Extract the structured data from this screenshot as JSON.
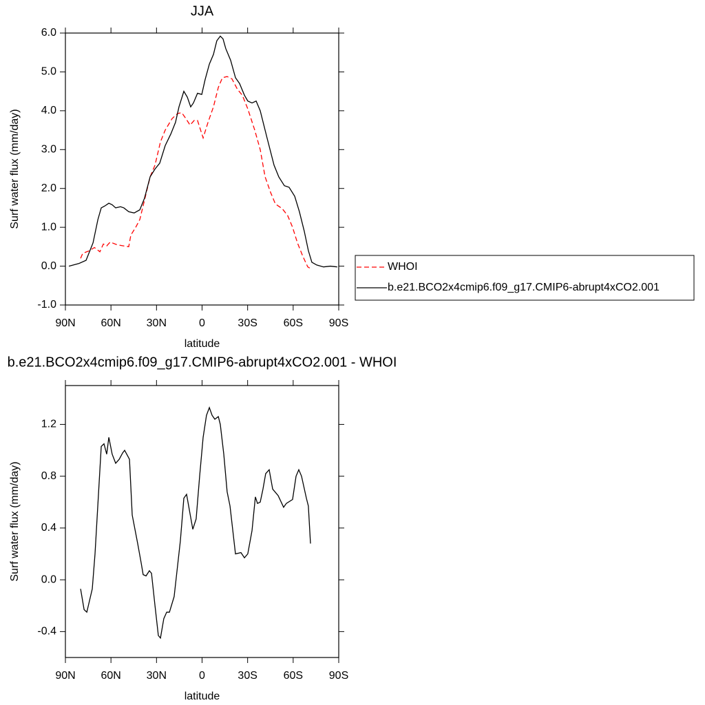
{
  "chart_data": [
    {
      "type": "line",
      "title": "JJA",
      "xlabel": "latitude",
      "ylabel": "Surf water flux (mm/day)",
      "xlim": [
        90,
        -90
      ],
      "xticks": [
        {
          "value": 90,
          "label": "90N"
        },
        {
          "value": 60,
          "label": "60N"
        },
        {
          "value": 30,
          "label": "30N"
        },
        0,
        {
          "value": -30,
          "label": "30S"
        },
        {
          "value": -60,
          "label": "60S"
        },
        {
          "value": -90,
          "label": "90S"
        }
      ],
      "ylim": [
        -1,
        6
      ],
      "yticks": [
        {
          "value": -1,
          "label": "-1.0"
        },
        {
          "value": 0,
          "label": "0.0"
        },
        {
          "value": 1,
          "label": "1.0"
        },
        {
          "value": 2,
          "label": "2.0"
        },
        {
          "value": 3,
          "label": "3.0"
        },
        {
          "value": 4,
          "label": "4.0"
        },
        {
          "value": 5,
          "label": "5.0"
        },
        {
          "value": 6,
          "label": "6.0"
        }
      ],
      "legend": "right",
      "series": [
        {
          "name": "WHOI",
          "color": "#ff0000",
          "style": "dashed",
          "x": [
            80,
            78.6,
            74,
            70.9,
            67.3,
            65,
            62.8,
            60.5,
            56,
            51.5,
            48.3,
            46.9,
            43.7,
            41,
            37.9,
            34.2,
            31,
            27.4,
            24.3,
            19.7,
            16.1,
            13.4,
            10.7,
            7.9,
            5.2,
            3,
            -0.7,
            -3.9,
            -7.5,
            -10.7,
            -13.4,
            -16.5,
            -19.7,
            -23.3,
            -26.5,
            -30.1,
            -34.7,
            -38.3,
            -41.5,
            -45.1,
            -48.3,
            -52.8,
            -56.4,
            -59.6,
            -62.8,
            -66.4,
            -69.6,
            -71.8
          ],
          "values": [
            0.2,
            0.33,
            0.4,
            0.48,
            0.37,
            0.57,
            0.52,
            0.62,
            0.55,
            0.52,
            0.5,
            0.8,
            1.0,
            1.2,
            1.7,
            2.3,
            2.6,
            3.2,
            3.5,
            3.8,
            3.93,
            3.95,
            3.8,
            3.63,
            3.75,
            3.75,
            3.3,
            3.7,
            4.1,
            4.6,
            4.85,
            4.88,
            4.82,
            4.55,
            4.4,
            4.05,
            3.5,
            3.0,
            2.3,
            1.9,
            1.6,
            1.48,
            1.3,
            1.0,
            0.6,
            0.25,
            -0.02,
            -0.07
          ]
        },
        {
          "name": "b.e21.BCO2x4cmip6.f09_g17.CMIP6-abrupt4xCO2.001",
          "color": "#000000",
          "style": "solid",
          "x": [
            87.7,
            81,
            76.4,
            71.8,
            68.6,
            66.4,
            64,
            61.4,
            59.2,
            56.9,
            53.7,
            51.5,
            48.3,
            44.7,
            41,
            37.9,
            34.2,
            31,
            27.9,
            24.3,
            20.6,
            17.5,
            15.2,
            12,
            9.7,
            7.5,
            5.7,
            3,
            0.2,
            -2,
            -4.8,
            -7.5,
            -9.7,
            -12,
            -13.8,
            -15.6,
            -18.8,
            -22,
            -24.7,
            -27.9,
            -30.1,
            -32.9,
            -35.6,
            -38.3,
            -42.8,
            -47.4,
            -50.5,
            -54.2,
            -57.3,
            -61,
            -64.1,
            -67.3,
            -70,
            -72.3,
            -75.5,
            -80,
            -84.5,
            -89
          ],
          "values": [
            0.0,
            0.07,
            0.15,
            0.6,
            1.2,
            1.5,
            1.55,
            1.62,
            1.58,
            1.5,
            1.53,
            1.5,
            1.4,
            1.37,
            1.45,
            1.75,
            2.3,
            2.5,
            2.65,
            3.1,
            3.4,
            3.7,
            4.1,
            4.5,
            4.35,
            4.1,
            4.2,
            4.45,
            4.42,
            4.8,
            5.2,
            5.45,
            5.8,
            5.92,
            5.85,
            5.6,
            5.3,
            4.85,
            4.7,
            4.4,
            4.25,
            4.2,
            4.25,
            4.0,
            3.3,
            2.6,
            2.3,
            2.07,
            2.03,
            1.8,
            1.4,
            0.9,
            0.4,
            0.1,
            0.03,
            -0.02,
            0.0,
            -0.02
          ]
        }
      ]
    },
    {
      "type": "line",
      "title": "b.e21.BCO2x4cmip6.f09_g17.CMIP6-abrupt4xCO2.001 - WHOI",
      "xlabel": "latitude",
      "ylabel": "Surf water flux (mm/day)",
      "xlim": [
        90,
        -90
      ],
      "xticks": [
        {
          "value": 90,
          "label": "90N"
        },
        {
          "value": 60,
          "label": "60N"
        },
        {
          "value": 30,
          "label": "30N"
        },
        0,
        {
          "value": -30,
          "label": "30S"
        },
        {
          "value": -60,
          "label": "60S"
        },
        {
          "value": -90,
          "label": "90S"
        }
      ],
      "ylim": [
        -0.6,
        1.5
      ],
      "yticks": [
        -0.4,
        {
          "value": 0,
          "label": "0.0"
        },
        0.4,
        0.8,
        1.2
      ],
      "series": [
        {
          "color": "#000000",
          "style": "solid",
          "x": [
            80,
            77.7,
            75.9,
            72.3,
            70.5,
            66.4,
            64.6,
            62.8,
            61.4,
            59.2,
            56.9,
            54.6,
            52.3,
            51,
            48.7,
            47.8,
            46,
            42.4,
            40.1,
            38.8,
            36.9,
            34.7,
            33.3,
            31,
            28.8,
            27.4,
            25.2,
            23.3,
            21.5,
            18.4,
            14.3,
            12,
            10.2,
            6.1,
            3.9,
            1.6,
            -0.7,
            -2.9,
            -4.8,
            -6.6,
            -8.4,
            -10.7,
            -12,
            -14.3,
            -16.5,
            -18.4,
            -22,
            -25.6,
            -27.9,
            -30.1,
            -32.9,
            -35.1,
            -36.5,
            -38.3,
            -40.1,
            -41.9,
            -44.2,
            -46.5,
            -50.1,
            -53.7,
            -55.5,
            -59.6,
            -61.9,
            -63.7,
            -65.5,
            -68.7,
            -70,
            -71.4
          ],
          "values": [
            -0.07,
            -0.23,
            -0.25,
            -0.07,
            0.2,
            1.03,
            1.05,
            0.97,
            1.1,
            0.97,
            0.9,
            0.93,
            0.98,
            1.0,
            0.95,
            0.93,
            0.5,
            0.28,
            0.13,
            0.04,
            0.03,
            0.07,
            0.05,
            -0.2,
            -0.43,
            -0.45,
            -0.3,
            -0.25,
            -0.25,
            -0.13,
            0.3,
            0.63,
            0.66,
            0.39,
            0.47,
            0.8,
            1.1,
            1.27,
            1.33,
            1.27,
            1.24,
            1.26,
            1.2,
            0.97,
            0.68,
            0.57,
            0.2,
            0.21,
            0.17,
            0.2,
            0.38,
            0.64,
            0.59,
            0.6,
            0.7,
            0.82,
            0.85,
            0.7,
            0.65,
            0.56,
            0.59,
            0.62,
            0.8,
            0.85,
            0.8,
            0.63,
            0.57,
            0.28
          ]
        }
      ]
    }
  ]
}
